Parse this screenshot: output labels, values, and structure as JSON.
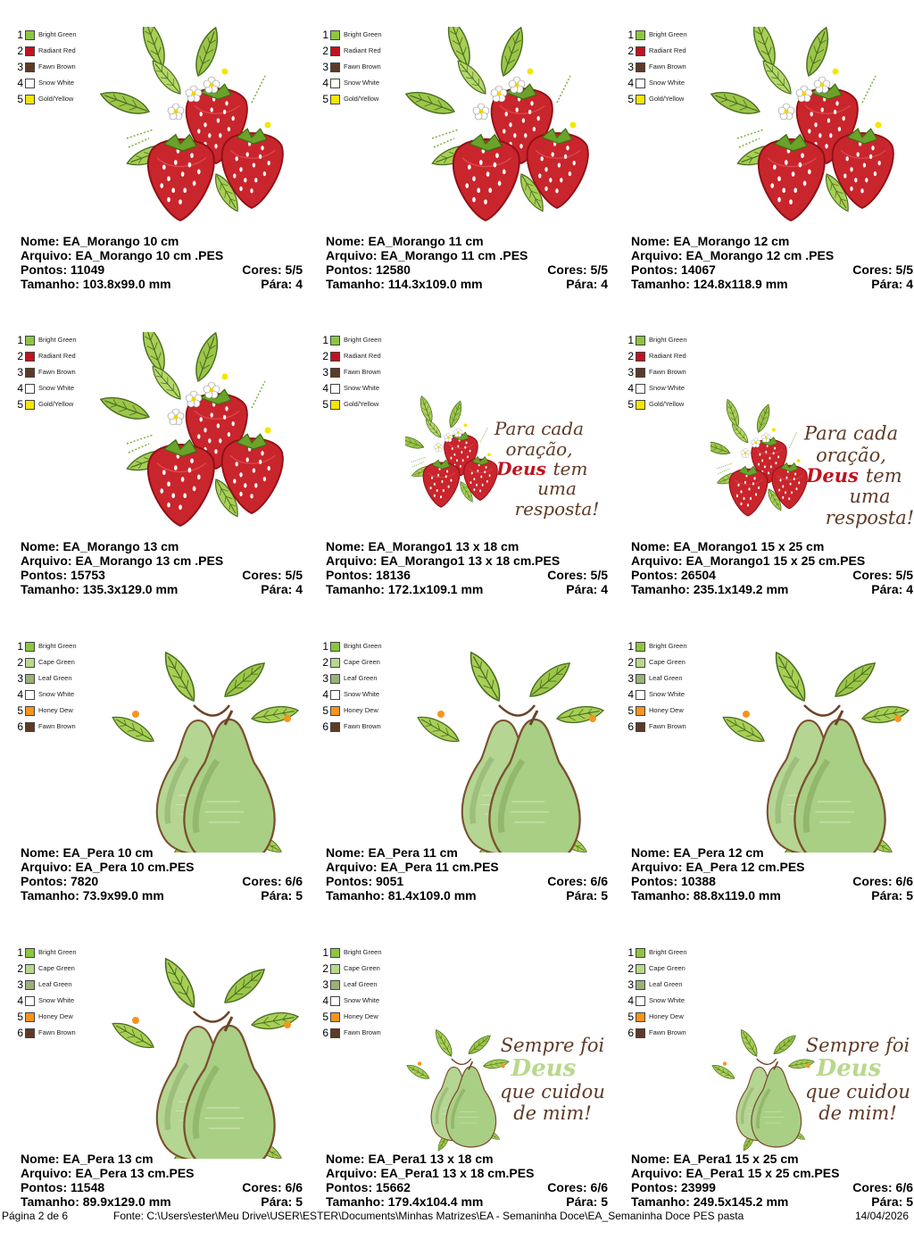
{
  "palettes": {
    "strawberry": [
      {
        "num": "1",
        "name": "Bright Green",
        "color": "#8cc63f"
      },
      {
        "num": "2",
        "name": "Radiant Red",
        "color": "#c1131e"
      },
      {
        "num": "3",
        "name": "Fawn Brown",
        "color": "#5e3a26"
      },
      {
        "num": "4",
        "name": "Snow White",
        "color": "#ffffff"
      },
      {
        "num": "5",
        "name": "Gold/Yellow",
        "color": "#f5e600"
      }
    ],
    "pear": [
      {
        "num": "1",
        "name": "Bright Green",
        "color": "#8cc63f"
      },
      {
        "num": "2",
        "name": "Cape Green",
        "color": "#b8d98c"
      },
      {
        "num": "3",
        "name": "Leaf Green",
        "color": "#9bb07a"
      },
      {
        "num": "4",
        "name": "Snow White",
        "color": "#ffffff"
      },
      {
        "num": "5",
        "name": "Honey Dew",
        "color": "#f7941d"
      },
      {
        "num": "6",
        "name": "Fawn Brown",
        "color": "#5e3a26"
      }
    ]
  },
  "designs": [
    {
      "type": "strawberry",
      "nome": "Nome: EA_Morango 10 cm",
      "arquivo": "Arquivo: EA_Morango 10 cm .PES",
      "pontos": "Pontos: 11049",
      "cores": "Cores: 5/5",
      "tamanho": "Tamanho: 103.8x99.0 mm",
      "para": "Pára: 4"
    },
    {
      "type": "strawberry",
      "nome": "Nome: EA_Morango 11 cm",
      "arquivo": "Arquivo: EA_Morango 11 cm .PES",
      "pontos": "Pontos: 12580",
      "cores": "Cores: 5/5",
      "tamanho": "Tamanho: 114.3x109.0 mm",
      "para": "Pára: 4"
    },
    {
      "type": "strawberry",
      "nome": "Nome: EA_Morango 12 cm",
      "arquivo": "Arquivo: EA_Morango 12 cm .PES",
      "pontos": "Pontos: 14067",
      "cores": "Cores: 5/5",
      "tamanho": "Tamanho: 124.8x118.9 mm",
      "para": "Pára: 4"
    },
    {
      "type": "strawberry",
      "nome": "Nome: EA_Morango 13 cm",
      "arquivo": "Arquivo: EA_Morango 13 cm .PES",
      "pontos": "Pontos: 15753",
      "cores": "Cores: 5/5",
      "tamanho": "Tamanho: 135.3x129.0 mm",
      "para": "Pára: 4"
    },
    {
      "type": "strawberry-text",
      "nome": "Nome: EA_Morango1 13 x 18 cm",
      "arquivo": "Arquivo: EA_Morango1 13 x 18 cm.PES",
      "pontos": "Pontos: 18136",
      "cores": "Cores: 5/5",
      "tamanho": "Tamanho: 172.1x109.1 mm",
      "para": "Pára: 4",
      "art_text": [
        "Para cada",
        "oração,",
        "Deus",
        "tem",
        "uma",
        "resposta!"
      ]
    },
    {
      "type": "strawberry-text",
      "nome": "Nome: EA_Morango1 15 x 25 cm",
      "arquivo": "Arquivo: EA_Morango1 15 x 25 cm.PES",
      "pontos": "Pontos: 26504",
      "cores": "Cores: 5/5",
      "tamanho": "Tamanho: 235.1x149.2 mm",
      "para": "Pára: 4",
      "art_text": [
        "Para cada",
        "oração,",
        "Deus",
        "tem",
        "uma",
        "resposta!"
      ]
    },
    {
      "type": "pear",
      "nome": "Nome: EA_Pera 10 cm",
      "arquivo": "Arquivo: EA_Pera 10 cm.PES",
      "pontos": "Pontos: 7820",
      "cores": "Cores: 6/6",
      "tamanho": "Tamanho: 73.9x99.0 mm",
      "para": "Pára: 5"
    },
    {
      "type": "pear",
      "nome": "Nome: EA_Pera 11 cm",
      "arquivo": "Arquivo: EA_Pera 11 cm.PES",
      "pontos": "Pontos: 9051",
      "cores": "Cores: 6/6",
      "tamanho": "Tamanho: 81.4x109.0 mm",
      "para": "Pára: 5"
    },
    {
      "type": "pear",
      "nome": "Nome: EA_Pera 12  cm",
      "arquivo": "Arquivo: EA_Pera 12  cm.PES",
      "pontos": "Pontos: 10388",
      "cores": "Cores: 6/6",
      "tamanho": "Tamanho: 88.8x119.0 mm",
      "para": "Pára: 5"
    },
    {
      "type": "pear",
      "nome": "Nome: EA_Pera 13 cm",
      "arquivo": "Arquivo: EA_Pera 13 cm.PES",
      "pontos": "Pontos: 11548",
      "cores": "Cores: 6/6",
      "tamanho": "Tamanho: 89.9x129.0 mm",
      "para": "Pára: 5"
    },
    {
      "type": "pear-text",
      "nome": "Nome: EA_Pera1 13 x 18 cm",
      "arquivo": "Arquivo: EA_Pera1 13 x 18 cm.PES",
      "pontos": "Pontos: 15662",
      "cores": "Cores: 6/6",
      "tamanho": "Tamanho: 179.4x104.4 mm",
      "para": "Pára: 5",
      "art_text": [
        "Sempre foi",
        "Deus",
        "que cuidou",
        "de mim!"
      ]
    },
    {
      "type": "pear-text",
      "nome": "Nome: EA_Pera1 15 x 25 cm",
      "arquivo": "Arquivo: EA_Pera1 15 x 25 cm.PES",
      "pontos": "Pontos: 23999",
      "cores": "Cores: 6/6",
      "tamanho": "Tamanho: 249.5x145.2 mm",
      "para": "Pára: 5",
      "art_text": [
        "Sempre foi",
        "Deus",
        "que cuidou",
        "de mim!"
      ]
    }
  ],
  "footer": {
    "page": "Página 2 de 6",
    "source": "Fonte: C:\\Users\\ester\\Meu Drive\\USER\\ESTER\\Documents\\Minhas Matrizes\\EA - Semaninha Doce\\EA_Semaninha Doce PES pasta",
    "date": "14/04/2026"
  }
}
